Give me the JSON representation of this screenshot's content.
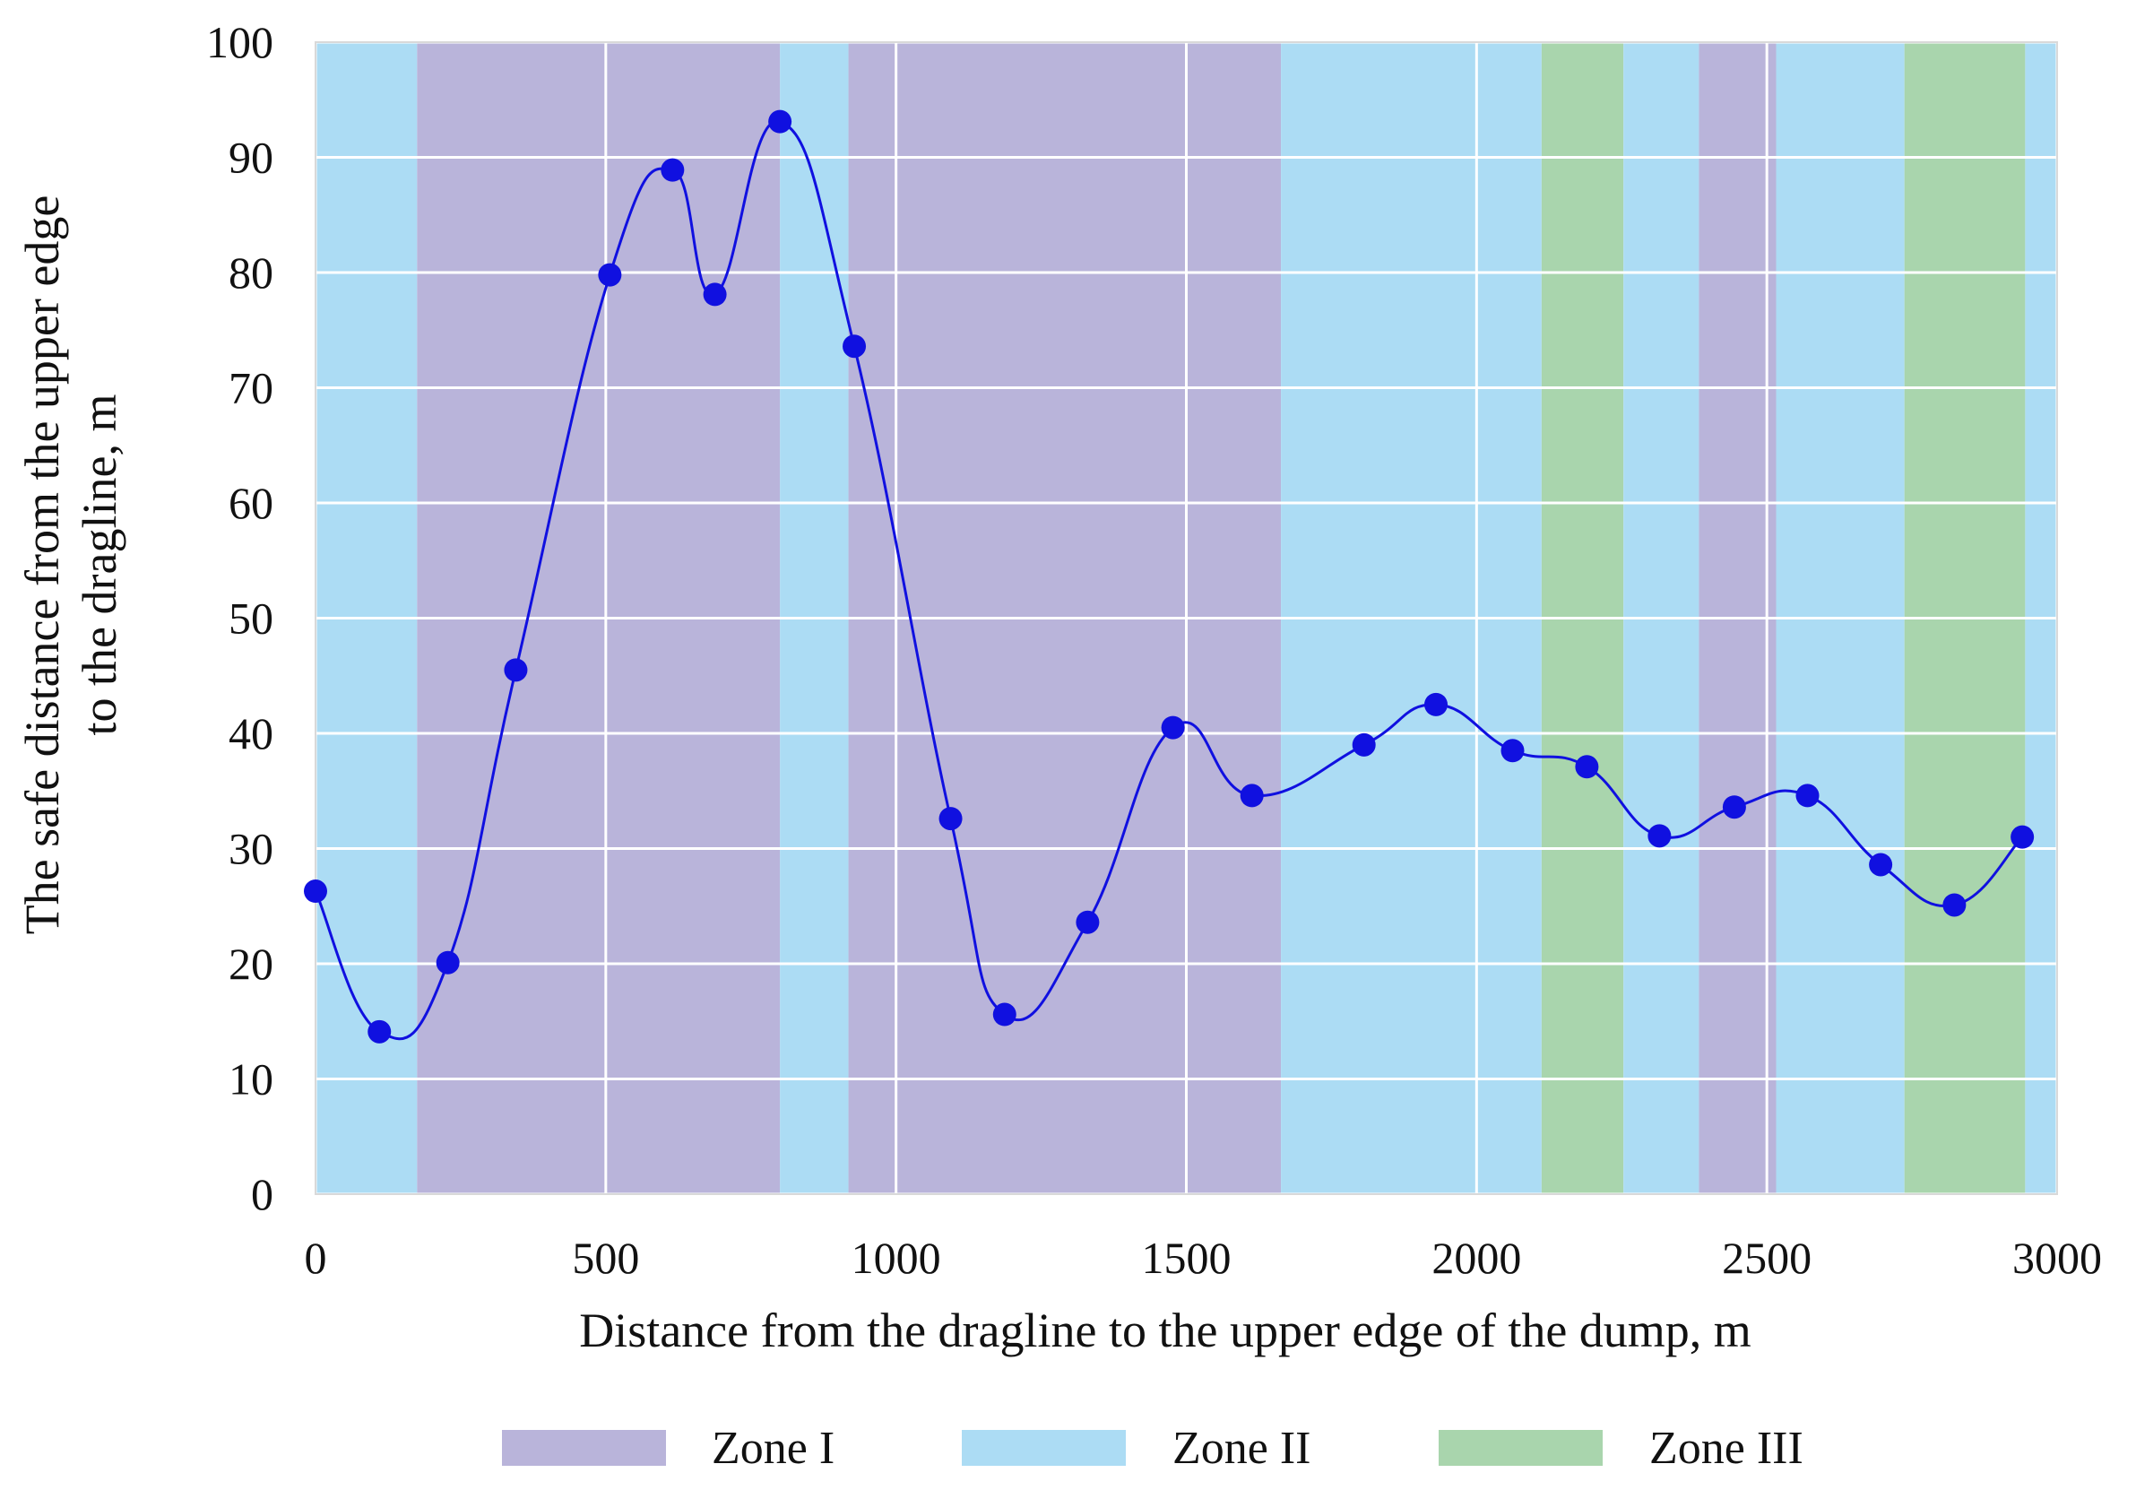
{
  "chart_data": {
    "type": "line",
    "title": "",
    "xlabel": "Distance from the dragline to the upper edge of the dump, m",
    "ylabel_lines": [
      "The safe distance from the upper edge",
      "to the dragline, m"
    ],
    "xlim": [
      0,
      3000
    ],
    "ylim": [
      0,
      100
    ],
    "x_ticks": [
      0,
      500,
      1000,
      1500,
      2000,
      2500,
      3000
    ],
    "y_ticks": [
      0,
      10,
      20,
      30,
      40,
      50,
      60,
      70,
      80,
      90,
      100
    ],
    "x_tick_labels": [
      "0",
      "500",
      "1000",
      "1500",
      "2000",
      "2500",
      "3000"
    ],
    "y_tick_labels": [
      "0",
      "10",
      "20",
      "30",
      "40",
      "50",
      "60",
      "70",
      "80",
      "90",
      "100"
    ],
    "grid": true,
    "legend_position": "bottom",
    "legend": [
      {
        "name": "Zone I",
        "color": "#b9b4da"
      },
      {
        "name": "Zone II",
        "color": "#acdcf4"
      },
      {
        "name": "Zone III",
        "color": "#a9d5ad"
      }
    ],
    "zones": [
      {
        "zone": "Zone II",
        "from": 0,
        "to": 175
      },
      {
        "zone": "Zone I",
        "from": 175,
        "to": 800
      },
      {
        "zone": "Zone II",
        "from": 800,
        "to": 918
      },
      {
        "zone": "Zone I",
        "from": 918,
        "to": 1663
      },
      {
        "zone": "Zone II",
        "from": 1663,
        "to": 2112
      },
      {
        "zone": "Zone III",
        "from": 2112,
        "to": 2253
      },
      {
        "zone": "Zone II",
        "from": 2253,
        "to": 2383
      },
      {
        "zone": "Zone I",
        "from": 2383,
        "to": 2516
      },
      {
        "zone": "Zone II",
        "from": 2516,
        "to": 2737
      },
      {
        "zone": "Zone III",
        "from": 2737,
        "to": 2945
      },
      {
        "zone": "Zone II",
        "from": 2945,
        "to": 3000
      }
    ],
    "series": [
      {
        "color": "#1010e0",
        "x": [
          0,
          110,
          228,
          345,
          507,
          615,
          688,
          800,
          928,
          1094,
          1187,
          1330,
          1477,
          1613,
          1806,
          1930,
          2062,
          2190,
          2315,
          2444,
          2570,
          2696,
          2823,
          2940
        ],
        "y": [
          26.3,
          14.1,
          20.1,
          45.5,
          79.8,
          88.9,
          78.1,
          93.1,
          73.6,
          32.6,
          15.6,
          23.6,
          40.5,
          34.6,
          39.0,
          42.5,
          38.5,
          37.1,
          31.1,
          33.6,
          34.6,
          28.6,
          25.1,
          31.0
        ]
      }
    ]
  }
}
